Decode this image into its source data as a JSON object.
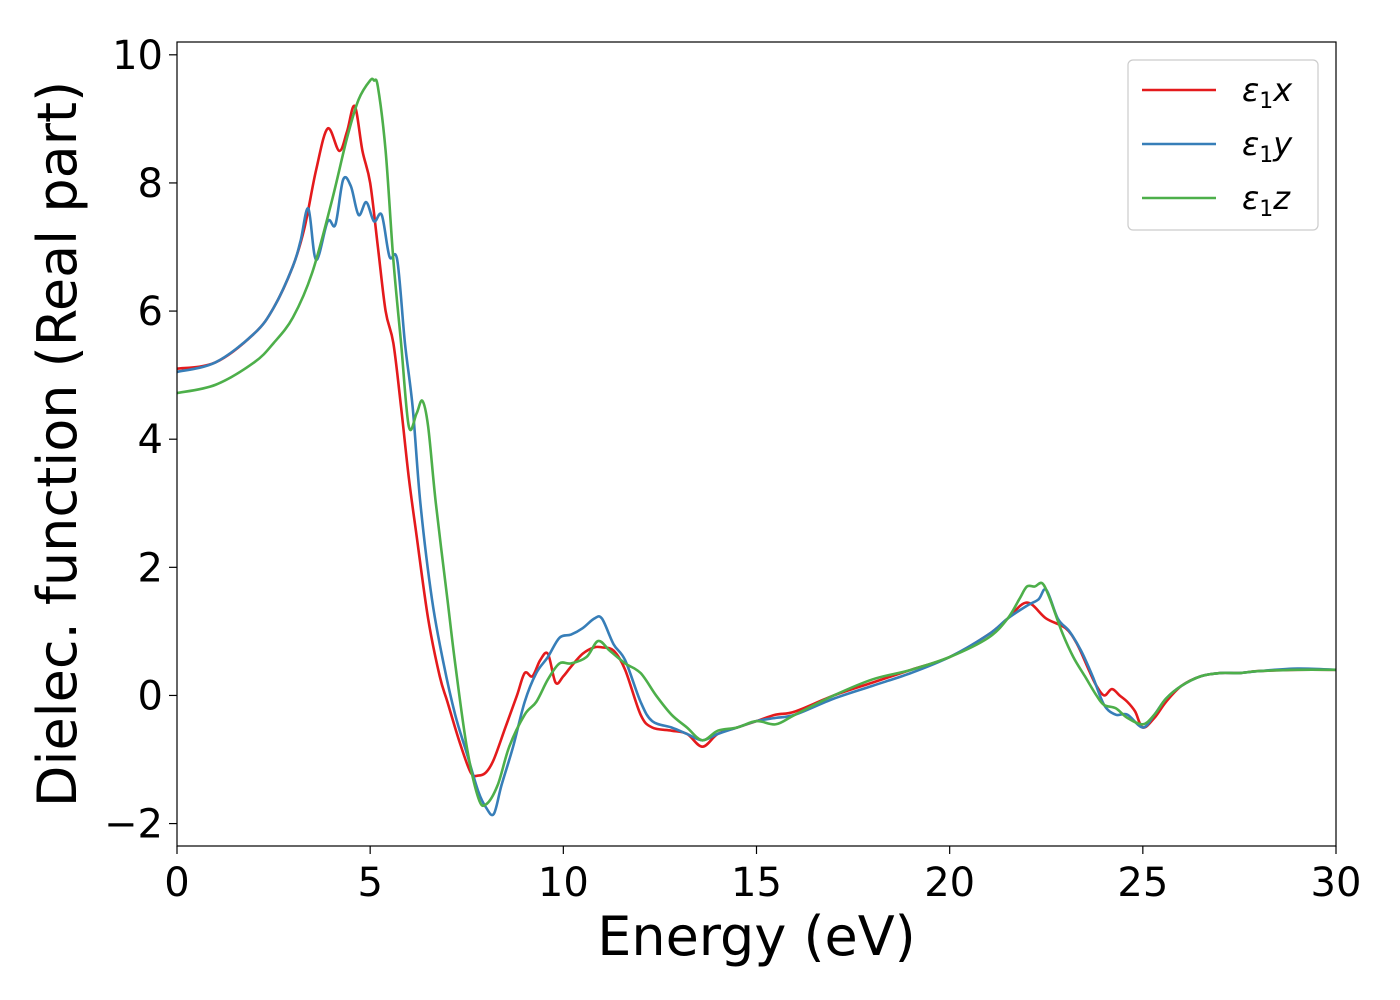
{
  "chart_data": {
    "type": "line",
    "title": "",
    "xlabel": "Energy (eV)",
    "ylabel": "Dielec. function (Real part)",
    "xlim": [
      0,
      30
    ],
    "ylim": [
      -2.35,
      10.2
    ],
    "xticks": [
      0,
      5,
      10,
      15,
      20,
      25,
      30
    ],
    "xtick_labels": [
      "0",
      "5",
      "10",
      "15",
      "20",
      "25",
      "30"
    ],
    "yticks": [
      -2,
      0,
      2,
      4,
      6,
      8,
      10
    ],
    "ytick_labels": [
      "−2",
      "0",
      "2",
      "4",
      "6",
      "8",
      "10"
    ],
    "grid": false,
    "legend_position": "top-right",
    "series": [
      {
        "name": "ε",
        "name_sub": "1",
        "name_suffix": "x",
        "color": "#e41a1c",
        "x": [
          0,
          1,
          2,
          2.5,
          3,
          3.3,
          3.6,
          3.9,
          4.2,
          4.4,
          4.6,
          4.8,
          5.0,
          5.2,
          5.4,
          5.6,
          5.8,
          6.0,
          6.2,
          6.5,
          6.8,
          7.0,
          7.3,
          7.6,
          7.8,
          8.0,
          8.2,
          8.5,
          8.8,
          9.0,
          9.2,
          9.4,
          9.6,
          9.8,
          10.0,
          10.2,
          10.5,
          10.8,
          11.0,
          11.3,
          11.6,
          12.0,
          12.3,
          12.8,
          13.2,
          13.6,
          14.0,
          14.5,
          15.0,
          15.5,
          16.0,
          17.0,
          18.0,
          19.0,
          20.0,
          21.0,
          21.5,
          22.0,
          22.5,
          23.0,
          23.3,
          23.6,
          23.8,
          24.0,
          24.2,
          24.4,
          24.6,
          24.8,
          25.0,
          25.3,
          25.6,
          26.0,
          26.5,
          27.0,
          27.5,
          28.0,
          29.0,
          30.0
        ],
        "values": [
          5.1,
          5.2,
          5.65,
          6.05,
          6.7,
          7.3,
          8.2,
          8.85,
          8.5,
          8.8,
          9.2,
          8.5,
          8.0,
          7.0,
          6.0,
          5.5,
          4.5,
          3.4,
          2.5,
          1.2,
          0.3,
          -0.1,
          -0.7,
          -1.2,
          -1.25,
          -1.2,
          -1.0,
          -0.5,
          0.0,
          0.35,
          0.3,
          0.55,
          0.65,
          0.2,
          0.3,
          0.45,
          0.65,
          0.75,
          0.75,
          0.7,
          0.4,
          -0.3,
          -0.5,
          -0.55,
          -0.6,
          -0.8,
          -0.6,
          -0.5,
          -0.4,
          -0.3,
          -0.25,
          0.0,
          0.2,
          0.4,
          0.6,
          0.95,
          1.2,
          1.45,
          1.2,
          1.05,
          0.8,
          0.4,
          0.15,
          0.0,
          0.1,
          0.0,
          -0.1,
          -0.25,
          -0.5,
          -0.35,
          -0.1,
          0.15,
          0.3,
          0.35,
          0.35,
          0.38,
          0.4,
          0.4
        ]
      },
      {
        "name": "ε",
        "name_sub": "1",
        "name_suffix": "y",
        "color": "#377eb8",
        "x": [
          0,
          1,
          2,
          2.5,
          3,
          3.2,
          3.4,
          3.6,
          3.9,
          4.1,
          4.3,
          4.5,
          4.7,
          4.9,
          5.1,
          5.3,
          5.5,
          5.7,
          5.9,
          6.1,
          6.3,
          6.6,
          6.9,
          7.2,
          7.5,
          7.8,
          8.0,
          8.2,
          8.4,
          8.7,
          9.0,
          9.3,
          9.6,
          9.9,
          10.2,
          10.5,
          10.8,
          11.0,
          11.3,
          11.6,
          12.0,
          12.3,
          12.8,
          13.2,
          13.6,
          14.0,
          14.5,
          15.0,
          15.5,
          16.0,
          17.0,
          18.0,
          19.0,
          20.0,
          21.0,
          21.5,
          22.0,
          22.3,
          22.5,
          22.8,
          23.1,
          23.4,
          23.7,
          24.0,
          24.3,
          24.6,
          25.0,
          25.3,
          25.6,
          26.0,
          26.5,
          27.0,
          27.5,
          28.0,
          29.0,
          30.0
        ],
        "values": [
          5.05,
          5.2,
          5.65,
          6.05,
          6.7,
          7.1,
          7.6,
          6.8,
          7.4,
          7.35,
          8.05,
          7.95,
          7.5,
          7.7,
          7.4,
          7.5,
          6.85,
          6.8,
          5.5,
          4.5,
          3.0,
          1.5,
          0.5,
          -0.3,
          -0.9,
          -1.5,
          -1.75,
          -1.85,
          -1.4,
          -0.8,
          -0.1,
          0.35,
          0.6,
          0.9,
          0.95,
          1.05,
          1.2,
          1.2,
          0.8,
          0.55,
          -0.1,
          -0.4,
          -0.5,
          -0.6,
          -0.7,
          -0.6,
          -0.5,
          -0.4,
          -0.35,
          -0.3,
          -0.05,
          0.15,
          0.35,
          0.6,
          0.95,
          1.2,
          1.4,
          1.5,
          1.65,
          1.2,
          1.0,
          0.7,
          0.3,
          -0.15,
          -0.3,
          -0.3,
          -0.5,
          -0.3,
          -0.05,
          0.15,
          0.3,
          0.35,
          0.35,
          0.38,
          0.42,
          0.4
        ]
      },
      {
        "name": "ε",
        "name_sub": "1",
        "name_suffix": "z",
        "color": "#4daf4a",
        "x": [
          0,
          1,
          2,
          2.5,
          3,
          3.5,
          4.0,
          4.4,
          4.7,
          5.0,
          5.1,
          5.2,
          5.4,
          5.6,
          5.8,
          6.0,
          6.2,
          6.35,
          6.5,
          6.7,
          7.0,
          7.2,
          7.5,
          7.8,
          8.0,
          8.3,
          8.6,
          9.0,
          9.3,
          9.6,
          9.9,
          10.2,
          10.6,
          10.9,
          11.2,
          11.6,
          12.0,
          12.4,
          12.8,
          13.2,
          13.6,
          14.0,
          14.5,
          15.0,
          15.5,
          16.0,
          17.0,
          18.0,
          19.0,
          20.0,
          21.0,
          21.5,
          21.8,
          22.0,
          22.2,
          22.4,
          22.6,
          22.9,
          23.2,
          23.5,
          23.8,
          24.0,
          24.3,
          24.6,
          25.0,
          25.3,
          25.6,
          26.0,
          26.5,
          27.0,
          27.5,
          28.0,
          29.0,
          30.0
        ],
        "values": [
          4.72,
          4.85,
          5.2,
          5.5,
          5.9,
          6.6,
          7.7,
          8.7,
          9.3,
          9.6,
          9.6,
          9.5,
          8.5,
          6.8,
          5.5,
          4.2,
          4.4,
          4.6,
          4.2,
          3.0,
          1.5,
          0.5,
          -0.8,
          -1.6,
          -1.7,
          -1.4,
          -0.8,
          -0.3,
          -0.1,
          0.25,
          0.5,
          0.5,
          0.6,
          0.85,
          0.7,
          0.5,
          0.35,
          0.0,
          -0.3,
          -0.5,
          -0.7,
          -0.55,
          -0.5,
          -0.4,
          -0.45,
          -0.3,
          0.0,
          0.25,
          0.4,
          0.6,
          0.9,
          1.2,
          1.5,
          1.7,
          1.7,
          1.75,
          1.5,
          1.0,
          0.6,
          0.3,
          0.0,
          -0.15,
          -0.2,
          -0.35,
          -0.45,
          -0.3,
          -0.05,
          0.15,
          0.3,
          0.35,
          0.35,
          0.38,
          0.4,
          0.4
        ]
      }
    ]
  }
}
